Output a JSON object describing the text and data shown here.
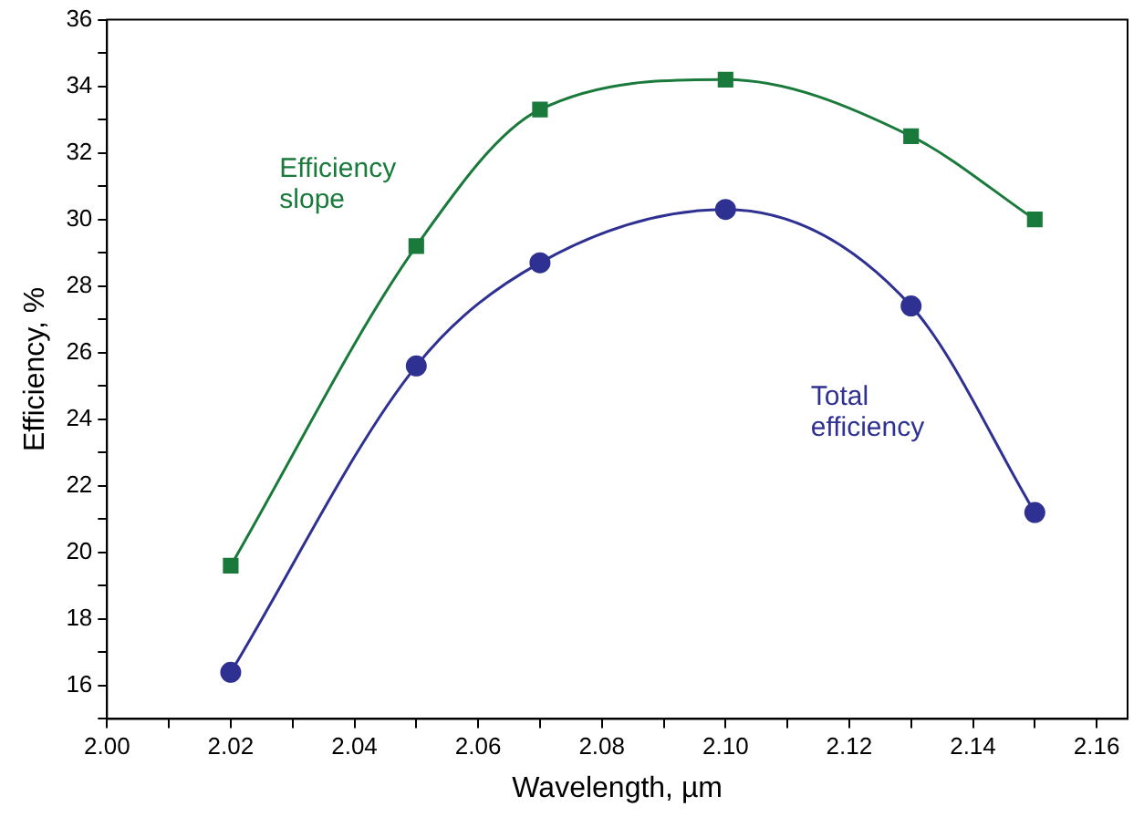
{
  "chart_data": {
    "type": "line",
    "xlabel": "Wavelength, µm",
    "ylabel": "Efficiency, %",
    "x": [
      2.02,
      2.05,
      2.07,
      2.1,
      2.13,
      2.15
    ],
    "series": [
      {
        "name": "Efficiency slope",
        "color": "#1a7a3c",
        "marker": "square",
        "values": [
          19.6,
          29.2,
          33.3,
          34.2,
          32.5,
          30.0
        ]
      },
      {
        "name": "Total efficiency",
        "color": "#2e3192",
        "marker": "circle",
        "values": [
          16.4,
          25.6,
          28.7,
          30.3,
          27.4,
          21.2
        ]
      }
    ],
    "xlim": [
      2.0,
      2.165
    ],
    "ylim": [
      15,
      36
    ],
    "xticks": [
      {
        "value": 2.0,
        "label": "2.00"
      },
      {
        "value": 2.01,
        "label": null
      },
      {
        "value": 2.02,
        "label": "2.02"
      },
      {
        "value": 2.03,
        "label": null
      },
      {
        "value": 2.04,
        "label": "2.04"
      },
      {
        "value": 2.05,
        "label": null
      },
      {
        "value": 2.06,
        "label": "2.06"
      },
      {
        "value": 2.07,
        "label": null
      },
      {
        "value": 2.08,
        "label": "2.08"
      },
      {
        "value": 2.09,
        "label": null
      },
      {
        "value": 2.1,
        "label": "2.10"
      },
      {
        "value": 2.11,
        "label": null
      },
      {
        "value": 2.12,
        "label": "2.12"
      },
      {
        "value": 2.13,
        "label": null
      },
      {
        "value": 2.14,
        "label": "2.14"
      },
      {
        "value": 2.15,
        "label": null
      },
      {
        "value": 2.16,
        "label": "2.16"
      }
    ],
    "yticks": [
      {
        "value": 15,
        "label": null
      },
      16,
      {
        "value": 17,
        "label": null
      },
      18,
      {
        "value": 19,
        "label": null
      },
      20,
      {
        "value": 21,
        "label": null
      },
      22,
      {
        "value": 23,
        "label": null
      },
      24,
      {
        "value": 25,
        "label": null
      },
      26,
      {
        "value": 27,
        "label": null
      },
      28,
      {
        "value": 29,
        "label": null
      },
      30,
      {
        "value": 31,
        "label": null
      },
      32,
      {
        "value": 33,
        "label": null
      },
      34,
      {
        "value": 35,
        "label": null
      },
      36
    ],
    "grid": false,
    "legend": false,
    "line_style": "solid"
  }
}
